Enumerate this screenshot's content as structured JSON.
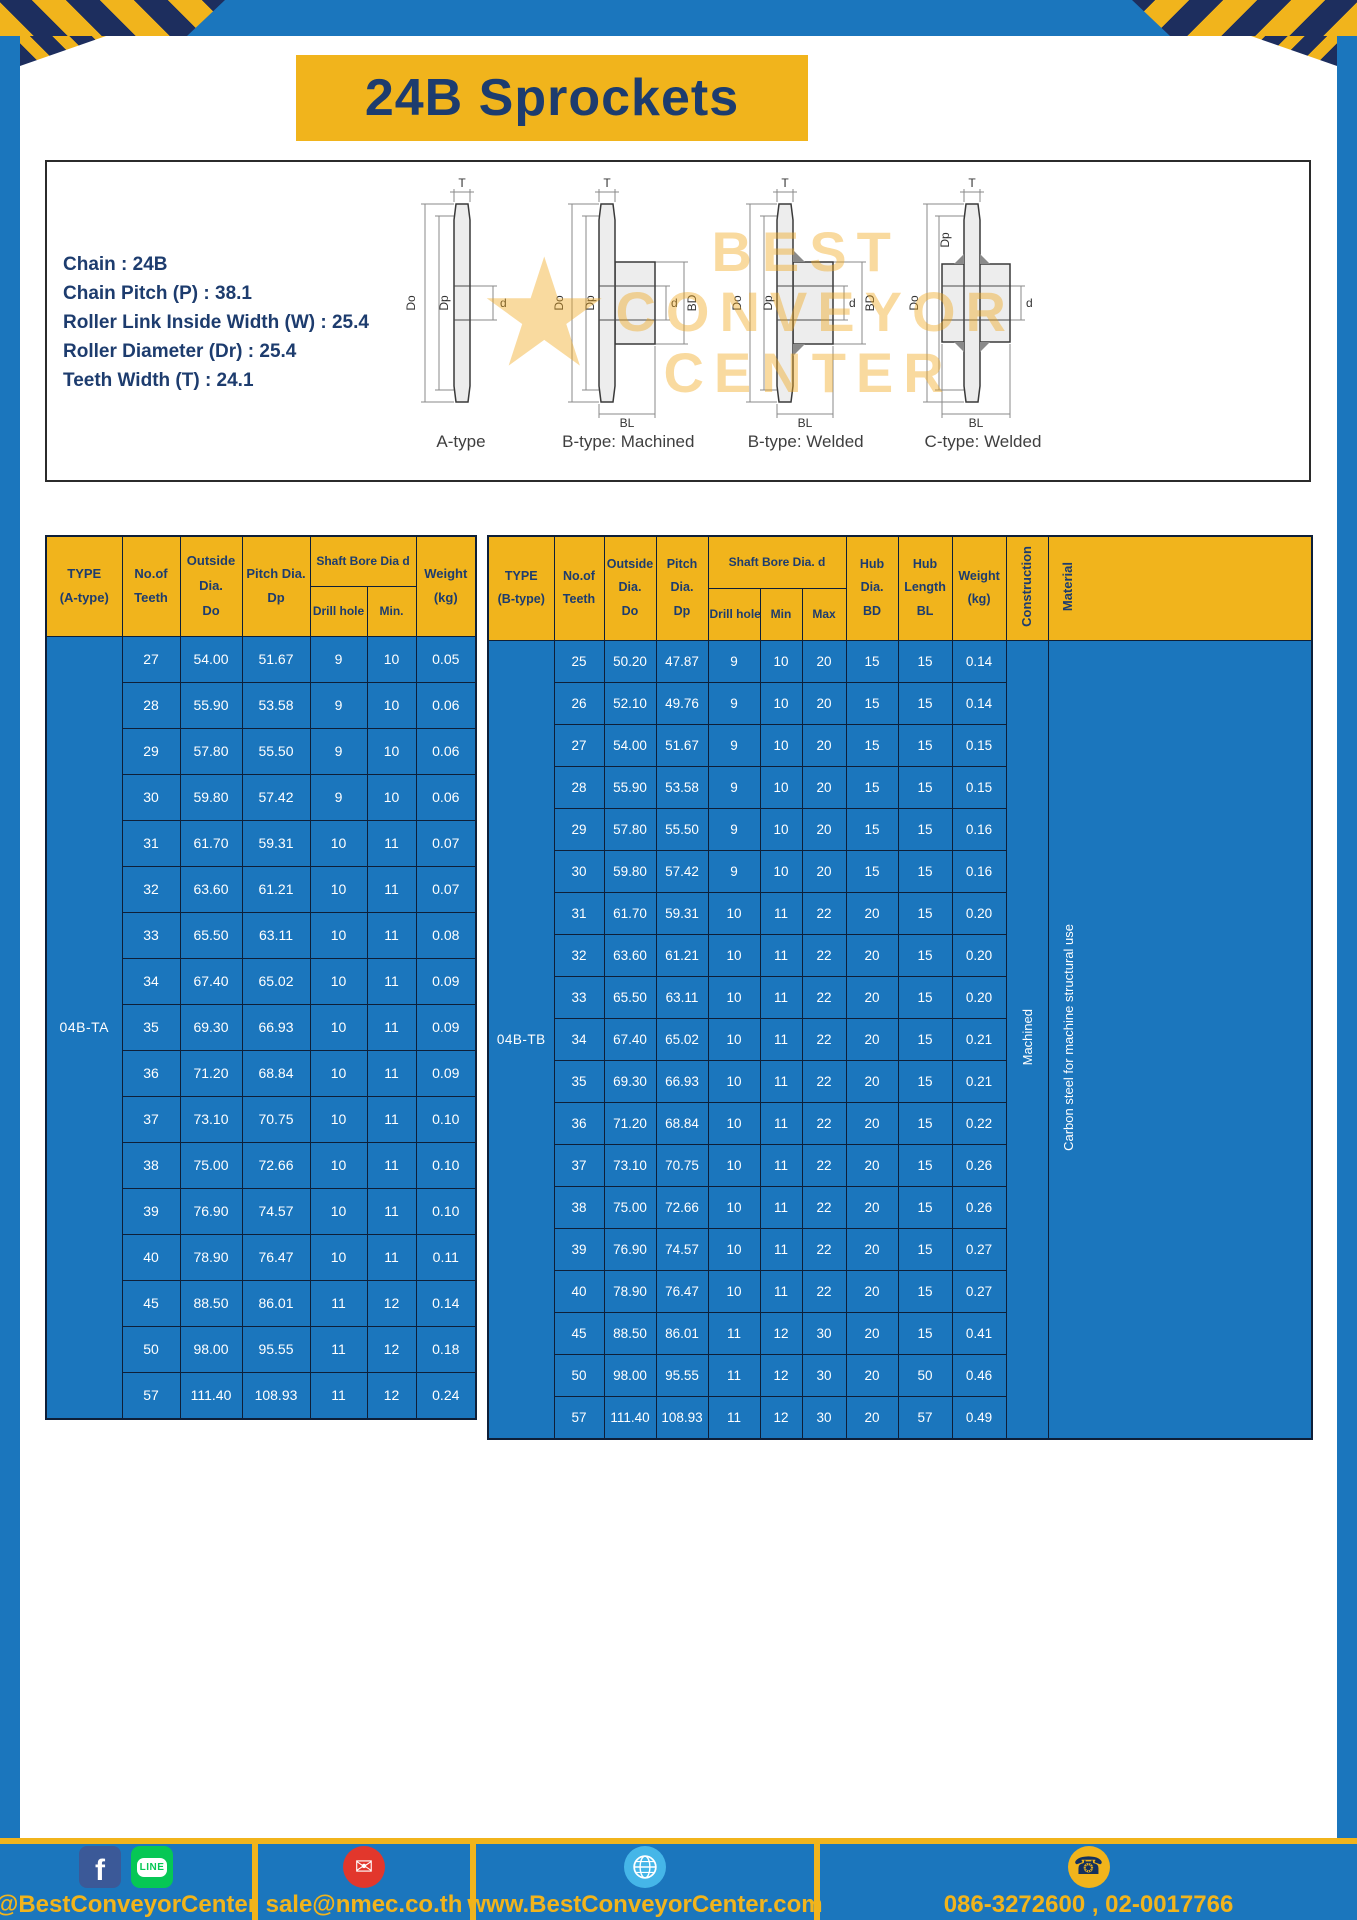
{
  "colors": {
    "background_blue": "#1b76bd",
    "accent_yellow": "#f1b41c",
    "navy_text": "#1d3c6e"
  },
  "page": {
    "title": "24B Sprockets"
  },
  "specs": {
    "lines": [
      "Chain  :  24B",
      "Chain Pitch (P)  :  38.1",
      "Roller Link Inside Width (W)  :  25.4",
      "Roller Diameter (Dr)  :  25.4",
      "Teeth Width (T)  :  24.1"
    ]
  },
  "drawings": {
    "labels": [
      "A-type",
      "B-type: Machined",
      "B-type: Welded",
      "C-type: Welded"
    ],
    "dims": {
      "t": "T",
      "do": "Do",
      "dp": "Dp",
      "d": "d",
      "bd": "BD",
      "bl": "BL"
    },
    "watermark": {
      "line1": "BEST",
      "line2": "CONVEYOR",
      "line3": "CENTER"
    }
  },
  "icons": {
    "star": "★",
    "facebook": "f",
    "email": "✉",
    "phone": "☎"
  },
  "table_a": {
    "type_value": "04B-TA",
    "headers": {
      "type": "TYPE\n(A-type)",
      "teeth": "No.of\nTeeth",
      "outside": "Outside\nDia.\nDo",
      "pitch": "Pitch Dia.\nDp",
      "shaft_group": "Shaft Bore Dia d",
      "drill": "Drill hole",
      "min": "Min.",
      "weight": "Weight\n(kg)"
    },
    "rows": [
      [
        "27",
        "54.00",
        "51.67",
        "9",
        "10",
        "0.05"
      ],
      [
        "28",
        "55.90",
        "53.58",
        "9",
        "10",
        "0.06"
      ],
      [
        "29",
        "57.80",
        "55.50",
        "9",
        "10",
        "0.06"
      ],
      [
        "30",
        "59.80",
        "57.42",
        "9",
        "10",
        "0.06"
      ],
      [
        "31",
        "61.70",
        "59.31",
        "10",
        "11",
        "0.07"
      ],
      [
        "32",
        "63.60",
        "61.21",
        "10",
        "11",
        "0.07"
      ],
      [
        "33",
        "65.50",
        "63.11",
        "10",
        "11",
        "0.08"
      ],
      [
        "34",
        "67.40",
        "65.02",
        "10",
        "11",
        "0.09"
      ],
      [
        "35",
        "69.30",
        "66.93",
        "10",
        "11",
        "0.09"
      ],
      [
        "36",
        "71.20",
        "68.84",
        "10",
        "11",
        "0.09"
      ],
      [
        "37",
        "73.10",
        "70.75",
        "10",
        "11",
        "0.10"
      ],
      [
        "38",
        "75.00",
        "72.66",
        "10",
        "11",
        "0.10"
      ],
      [
        "39",
        "76.90",
        "74.57",
        "10",
        "11",
        "0.10"
      ],
      [
        "40",
        "78.90",
        "76.47",
        "10",
        "11",
        "0.11"
      ],
      [
        "45",
        "88.50",
        "86.01",
        "11",
        "12",
        "0.14"
      ],
      [
        "50",
        "98.00",
        "95.55",
        "11",
        "12",
        "0.18"
      ],
      [
        "57",
        "111.40",
        "108.93",
        "11",
        "12",
        "0.24"
      ]
    ]
  },
  "table_b": {
    "type_value": "04B-TB",
    "construction_value": "Machined",
    "material_value": "Carbon steel for machine structural use",
    "headers": {
      "type": "TYPE\n(B-type)",
      "teeth": "No.of\nTeeth",
      "outside": "Outside\nDia.\nDo",
      "pitch": "Pitch\nDia.\nDp",
      "shaft_group": "Shaft Bore Dia.  d",
      "drill": "Drill hole",
      "min": "Min",
      "max": "Max",
      "hub_dia": "Hub\nDia.\nBD",
      "hub_len": "Hub\nLength\nBL",
      "weight": "Weight\n(kg)",
      "construction": "Construction",
      "material": "Material"
    },
    "rows": [
      [
        "25",
        "50.20",
        "47.87",
        "9",
        "10",
        "20",
        "15",
        "15",
        "0.14"
      ],
      [
        "26",
        "52.10",
        "49.76",
        "9",
        "10",
        "20",
        "15",
        "15",
        "0.14"
      ],
      [
        "27",
        "54.00",
        "51.67",
        "9",
        "10",
        "20",
        "15",
        "15",
        "0.15"
      ],
      [
        "28",
        "55.90",
        "53.58",
        "9",
        "10",
        "20",
        "15",
        "15",
        "0.15"
      ],
      [
        "29",
        "57.80",
        "55.50",
        "9",
        "10",
        "20",
        "15",
        "15",
        "0.16"
      ],
      [
        "30",
        "59.80",
        "57.42",
        "9",
        "10",
        "20",
        "15",
        "15",
        "0.16"
      ],
      [
        "31",
        "61.70",
        "59.31",
        "10",
        "11",
        "22",
        "20",
        "15",
        "0.20"
      ],
      [
        "32",
        "63.60",
        "61.21",
        "10",
        "11",
        "22",
        "20",
        "15",
        "0.20"
      ],
      [
        "33",
        "65.50",
        "63.11",
        "10",
        "11",
        "22",
        "20",
        "15",
        "0.20"
      ],
      [
        "34",
        "67.40",
        "65.02",
        "10",
        "11",
        "22",
        "20",
        "15",
        "0.21"
      ],
      [
        "35",
        "69.30",
        "66.93",
        "10",
        "11",
        "22",
        "20",
        "15",
        "0.21"
      ],
      [
        "36",
        "71.20",
        "68.84",
        "10",
        "11",
        "22",
        "20",
        "15",
        "0.22"
      ],
      [
        "37",
        "73.10",
        "70.75",
        "10",
        "11",
        "22",
        "20",
        "15",
        "0.26"
      ],
      [
        "38",
        "75.00",
        "72.66",
        "10",
        "11",
        "22",
        "20",
        "15",
        "0.26"
      ],
      [
        "39",
        "76.90",
        "74.57",
        "10",
        "11",
        "22",
        "20",
        "15",
        "0.27"
      ],
      [
        "40",
        "78.90",
        "76.47",
        "10",
        "11",
        "22",
        "20",
        "15",
        "0.27"
      ],
      [
        "45",
        "88.50",
        "86.01",
        "11",
        "12",
        "30",
        "20",
        "15",
        "0.41"
      ],
      [
        "50",
        "98.00",
        "95.55",
        "11",
        "12",
        "30",
        "20",
        "50",
        "0.46"
      ],
      [
        "57",
        "111.40",
        "108.93",
        "11",
        "12",
        "30",
        "20",
        "57",
        "0.49"
      ]
    ]
  },
  "footer": {
    "social_handle": "@BestConveyorCenter",
    "line_label": "LINE",
    "email": "sale@nmec.co.th",
    "website": "www.BestConveyorCenter.com",
    "phones": "086-3272600 , 02-0017766"
  }
}
